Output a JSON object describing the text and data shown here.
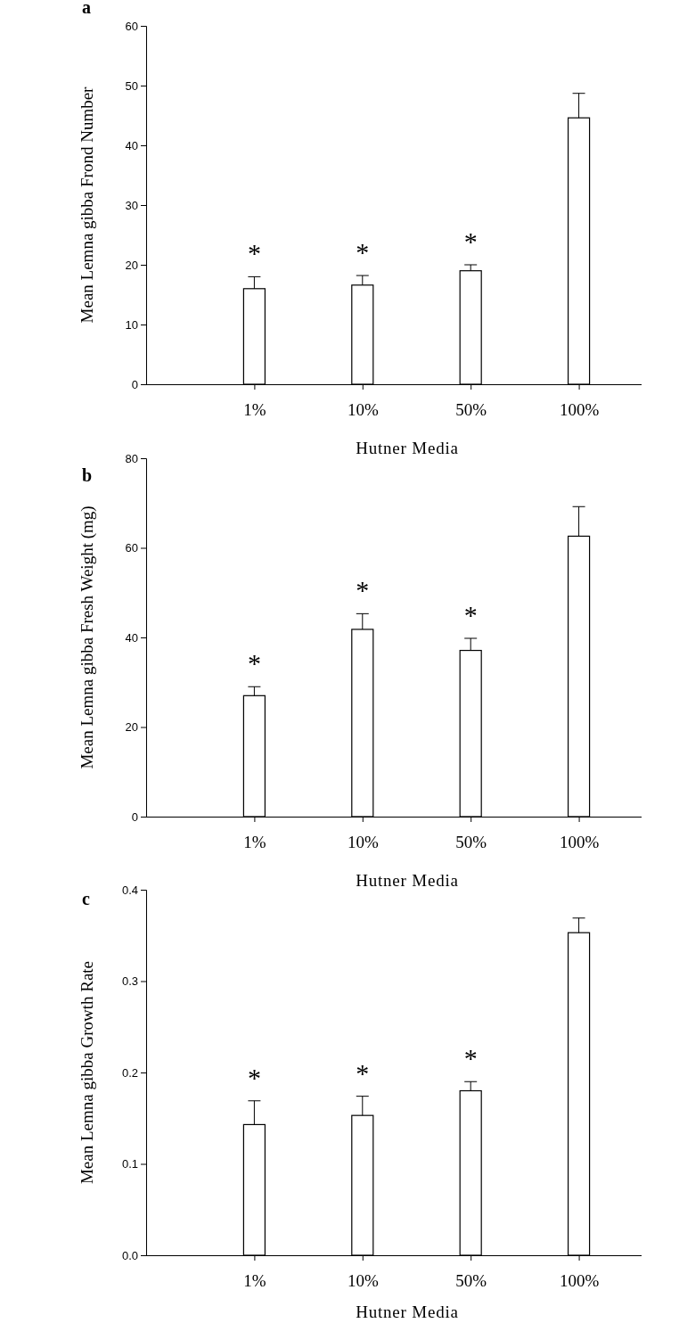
{
  "chart_data": [
    {
      "type": "bar",
      "title": "a",
      "categories": [
        "1%",
        "10%",
        "50%",
        "100%"
      ],
      "values": [
        16.0,
        16.6,
        19.0,
        44.6
      ],
      "errors": [
        [
          16.0,
          18.0
        ],
        [
          16.6,
          18.2
        ],
        [
          19.0,
          20.0
        ],
        [
          44.6,
          48.7
        ]
      ],
      "color": "#ffffff",
      "ylim": [
        0,
        60
      ],
      "yticks": [
        0,
        10,
        20,
        30,
        40,
        50,
        60
      ],
      "xlabel": "Hutner Media",
      "ylabel": "Mean Lemna gibba Frond Number",
      "grid": false,
      "annotations": [
        "*",
        "*",
        "*"
      ]
    },
    {
      "type": "bar",
      "title": "b",
      "categories": [
        "1%",
        "10%",
        "50%",
        "100%"
      ],
      "values": [
        27.0,
        41.8,
        37.1,
        62.6
      ],
      "errors": [
        [
          27.0,
          29.0
        ],
        [
          41.8,
          45.3
        ],
        [
          37.1,
          39.8
        ],
        [
          62.6,
          69.2
        ]
      ],
      "color": "#ffffff",
      "ylim": [
        0,
        80
      ],
      "yticks": [
        0,
        20,
        40,
        60,
        80
      ],
      "xlabel": "Hutner Media",
      "ylabel": "Mean Lemna gibba Fresh Weight (mg)",
      "grid": false,
      "annotations": [
        "*",
        "*",
        "*"
      ]
    },
    {
      "type": "bar",
      "title": "c",
      "categories": [
        "1%",
        "10%",
        "50%",
        "100%"
      ],
      "values": [
        0.143,
        0.153,
        0.18,
        0.353
      ],
      "errors": [
        [
          0.143,
          0.169
        ],
        [
          0.153,
          0.174
        ],
        [
          0.18,
          0.19
        ],
        [
          0.353,
          0.369
        ]
      ],
      "color": "#ffffff",
      "ylim": [
        0,
        0.4
      ],
      "yticks": [
        {
          "value": 0,
          "label": "0.0"
        },
        0.1,
        0.2,
        0.3,
        0.4
      ],
      "xlabel": "Hutner Media",
      "ylabel": "Mean Lemna gibba Growth Rate",
      "grid": false,
      "annotations": [
        "*",
        "*",
        "*"
      ]
    }
  ]
}
